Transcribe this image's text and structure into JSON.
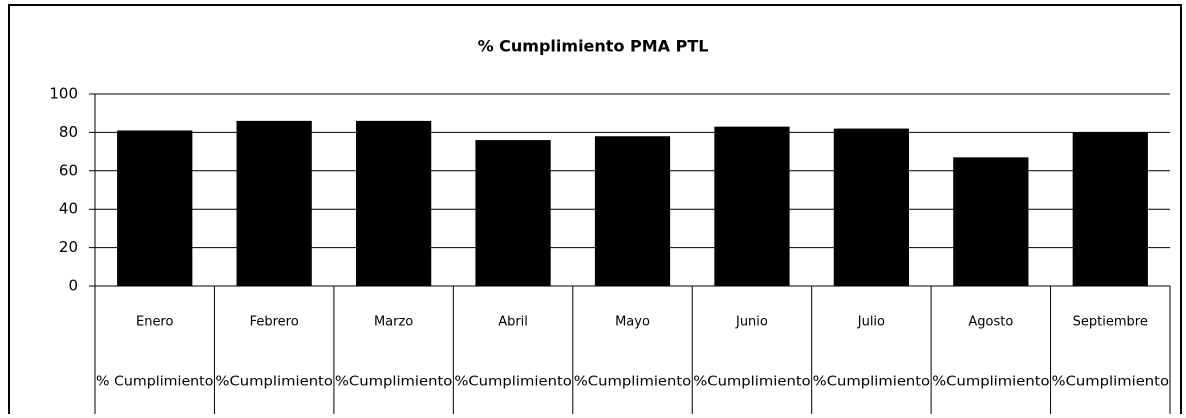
{
  "chart_data": {
    "type": "bar",
    "title": "% Cumplimiento PMA PTL",
    "categories": [
      "Enero",
      "Febrero",
      "Marzo",
      "Abril",
      "Mayo",
      "Junio",
      "Julio",
      "Agosto",
      "Septiembre"
    ],
    "subcategories": [
      "% Cumplimiento",
      "%Cumplimiento",
      "%Cumplimiento",
      "%Cumplimiento",
      "%Cumplimiento",
      "%Cumplimiento",
      "%Cumplimiento",
      "%Cumplimiento",
      "%Cumplimiento"
    ],
    "values": [
      81,
      86,
      86,
      76,
      78,
      83,
      82,
      67,
      80
    ],
    "color": "#000000",
    "ylim": [
      0,
      100
    ],
    "yticks": [
      0,
      20,
      40,
      60,
      80,
      100
    ],
    "grid": true
  }
}
